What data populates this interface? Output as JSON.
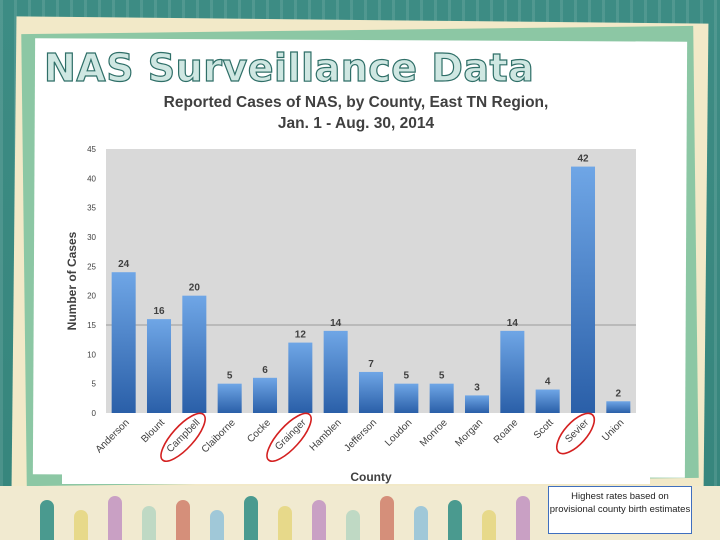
{
  "slide": {
    "title": "NAS Surveillance Data",
    "note": "Highest rates based on provisional county birth estimates"
  },
  "chart_data": {
    "type": "bar",
    "title_line1": "Reported Cases of NAS, by County, East TN Region,",
    "title_line2": "Jan. 1 - Aug. 30, 2014",
    "xlabel": "County",
    "ylabel": "Number of Cases",
    "ylim": [
      0,
      45
    ],
    "yticks": [
      0,
      5,
      10,
      15,
      20,
      25,
      30,
      35,
      40,
      45
    ],
    "categories": [
      "Anderson",
      "Blount",
      "Campbell",
      "Claiborne",
      "Cocke",
      "Grainger",
      "Hamblen",
      "Jefferson",
      "Loudon",
      "Monroe",
      "Morgan",
      "Roane",
      "Scott",
      "Sevier",
      "Union"
    ],
    "values": [
      24,
      16,
      20,
      5,
      6,
      12,
      14,
      7,
      5,
      5,
      3,
      14,
      4,
      42,
      2
    ],
    "highlighted": [
      "Campbell",
      "Grainger",
      "Sevier"
    ],
    "reference_line": 15,
    "colors": {
      "bar_top": "#6fa6e6",
      "bar_bottom": "#2a5fa8",
      "plot_bg": "#d9d9d9",
      "circle": "#d42020",
      "text": "#404040"
    }
  }
}
